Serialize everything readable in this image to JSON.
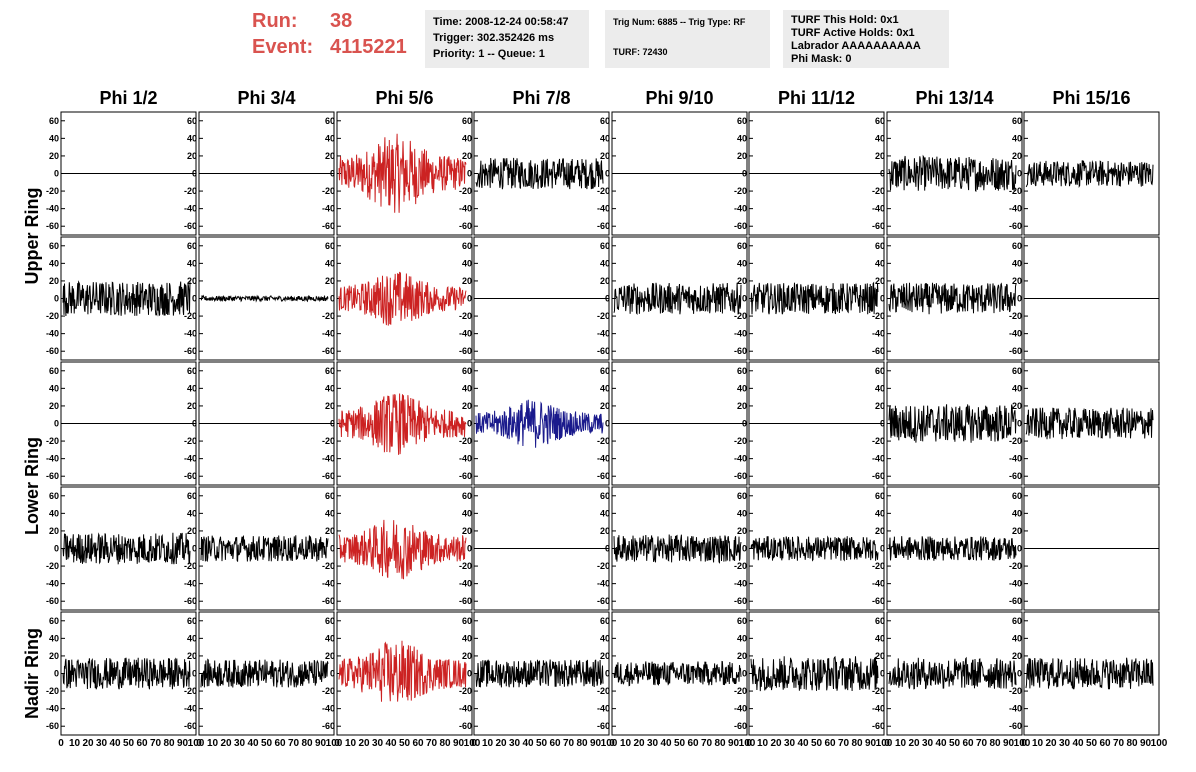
{
  "header": {
    "run_label": "Run:",
    "run_value": "38",
    "event_label": "Event:",
    "event_value": "4115221",
    "time_info": [
      "Time: 2008-12-24 00:58:47",
      "Trigger: 302.352426 ms",
      "Priority: 1 -- Queue: 1"
    ],
    "trig_info": [
      "Trig Num: 6885 -- Trig Type: RF",
      "TURF: 72430"
    ],
    "turf_info": [
      "TURF This Hold: 0x1",
      "TURF Active Holds: 0x1",
      "Labrador AAAAAAAAAA",
      "Phi Mask: 0"
    ]
  },
  "colors": {
    "black": "#000000",
    "red": "#cc2222",
    "blue": "#1a1a8c",
    "accent_text": "#d9534f"
  },
  "chart_data": {
    "type": "line",
    "columns": [
      "Phi 1/2",
      "Phi 3/4",
      "Phi 5/6",
      "Phi 7/8",
      "Phi 9/10",
      "Phi 11/12",
      "Phi 13/14",
      "Phi 15/16"
    ],
    "row_labels": [
      "Upper Ring",
      "Lower Ring",
      "Nadir Ring"
    ],
    "ylim": [
      -70,
      70
    ],
    "xlim": [
      0,
      100
    ],
    "y_ticks": [
      60,
      40,
      20,
      0,
      -20,
      -40,
      -60
    ],
    "x_ticks": [
      "0",
      "10",
      "20",
      "30",
      "40",
      "50",
      "60",
      "70",
      "80",
      "90",
      "100"
    ],
    "panels": [
      [
        {
          "mode": "flat"
        },
        {
          "mode": "flat"
        },
        {
          "mode": "noise",
          "amp": 35,
          "color": "red",
          "burst": true
        },
        {
          "mode": "noise",
          "amp": 18,
          "color": "black"
        },
        {
          "mode": "flat"
        },
        {
          "mode": "flat"
        },
        {
          "mode": "noise",
          "amp": 20,
          "color": "black"
        },
        {
          "mode": "noise",
          "amp": 15,
          "color": "black"
        }
      ],
      [
        {
          "mode": "noise",
          "amp": 20,
          "color": "black"
        },
        {
          "mode": "noise",
          "amp": 3,
          "color": "black"
        },
        {
          "mode": "noise",
          "amp": 25,
          "color": "red",
          "burst": true
        },
        {
          "mode": "flat"
        },
        {
          "mode": "noise",
          "amp": 18,
          "color": "black"
        },
        {
          "mode": "noise",
          "amp": 18,
          "color": "black"
        },
        {
          "mode": "noise",
          "amp": 18,
          "color": "black"
        },
        {
          "mode": "flat"
        }
      ],
      [
        {
          "mode": "flat"
        },
        {
          "mode": "flat"
        },
        {
          "mode": "noise",
          "amp": 28,
          "color": "red",
          "burst": true
        },
        {
          "mode": "noise",
          "amp": 22,
          "color": "blue",
          "burst": true
        },
        {
          "mode": "flat"
        },
        {
          "mode": "flat"
        },
        {
          "mode": "noise",
          "amp": 22,
          "color": "black"
        },
        {
          "mode": "noise",
          "amp": 18,
          "color": "black"
        }
      ],
      [
        {
          "mode": "noise",
          "amp": 18,
          "color": "black"
        },
        {
          "mode": "noise",
          "amp": 15,
          "color": "black"
        },
        {
          "mode": "noise",
          "amp": 28,
          "color": "red",
          "burst": true
        },
        {
          "mode": "flat"
        },
        {
          "mode": "noise",
          "amp": 16,
          "color": "black"
        },
        {
          "mode": "noise",
          "amp": 14,
          "color": "black"
        },
        {
          "mode": "noise",
          "amp": 14,
          "color": "black"
        },
        {
          "mode": "flat"
        }
      ],
      [
        {
          "mode": "noise",
          "amp": 18,
          "color": "black"
        },
        {
          "mode": "noise",
          "amp": 16,
          "color": "black"
        },
        {
          "mode": "noise",
          "amp": 30,
          "color": "red",
          "burst": true
        },
        {
          "mode": "noise",
          "amp": 16,
          "color": "black"
        },
        {
          "mode": "noise",
          "amp": 14,
          "color": "black"
        },
        {
          "mode": "noise",
          "amp": 20,
          "color": "black"
        },
        {
          "mode": "noise",
          "amp": 18,
          "color": "black"
        },
        {
          "mode": "noise",
          "amp": 18,
          "color": "black"
        }
      ]
    ]
  }
}
